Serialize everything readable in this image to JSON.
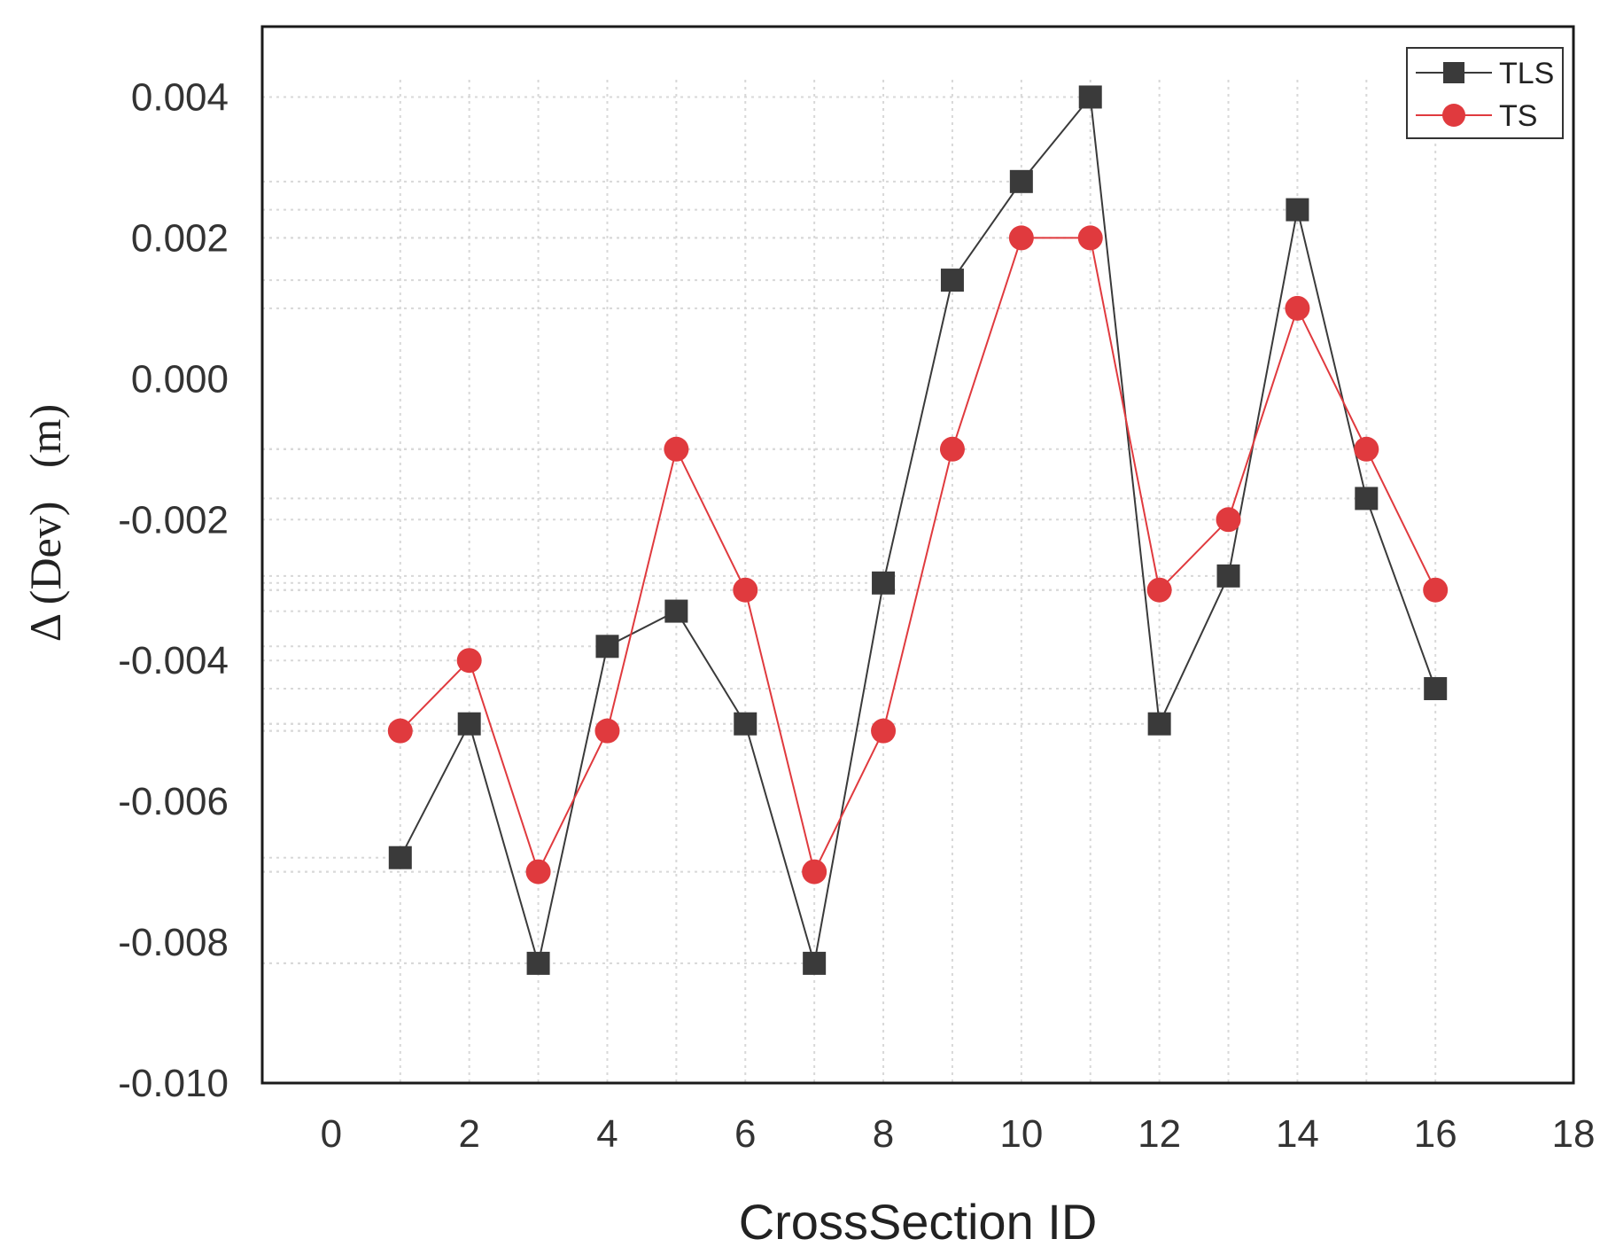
{
  "chart_data": {
    "type": "line",
    "title": "",
    "xlabel": "CrossSection ID",
    "ylabel": "Δ (Dev)   (m)",
    "xlim": [
      -1,
      18
    ],
    "ylim": [
      -0.01,
      0.005
    ],
    "x_ticks": [
      0,
      2,
      4,
      6,
      8,
      10,
      12,
      14,
      16,
      18
    ],
    "x_tick_labels": [
      "0",
      "2",
      "4",
      "6",
      "8",
      "10",
      "12",
      "14",
      "16",
      "18"
    ],
    "y_ticks": [
      0.004,
      0.002,
      0.0,
      -0.002,
      -0.004,
      -0.006,
      -0.008,
      -0.01
    ],
    "y_tick_labels": [
      "0.004",
      "0.002",
      "0.000",
      "-0.002",
      "-0.004",
      "-0.006",
      "-0.008",
      "-0.010"
    ],
    "grid": true,
    "legend_position": "top-right",
    "x": [
      1,
      2,
      3,
      4,
      5,
      6,
      7,
      8,
      9,
      10,
      11,
      12,
      13,
      14,
      15,
      16
    ],
    "series": [
      {
        "name": "TLS",
        "marker": "square",
        "color": "#3a3a3a",
        "values": [
          -0.0068,
          -0.0049,
          -0.0083,
          -0.0038,
          -0.0033,
          -0.0049,
          -0.0083,
          -0.0029,
          0.0014,
          0.0028,
          0.004,
          -0.0049,
          -0.0028,
          0.0024,
          -0.0017,
          -0.0044
        ]
      },
      {
        "name": "TS",
        "marker": "circle",
        "color": "#e03a3e",
        "values": [
          -0.005,
          -0.004,
          -0.007,
          -0.005,
          -0.001,
          -0.003,
          -0.007,
          -0.005,
          -0.001,
          0.002,
          0.002,
          -0.003,
          -0.002,
          0.001,
          -0.001,
          -0.003
        ]
      }
    ]
  }
}
